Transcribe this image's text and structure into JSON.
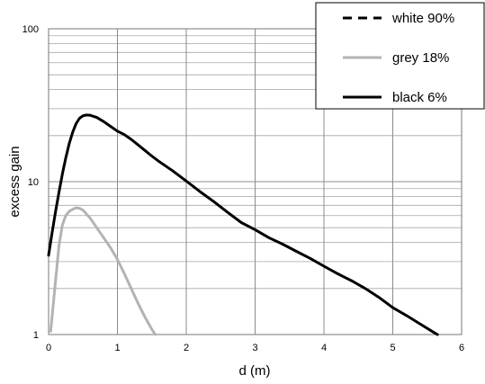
{
  "chart_data": {
    "type": "line",
    "title": "",
    "xlabel": "d (m)",
    "ylabel": "excess gain",
    "xlim": [
      0,
      6
    ],
    "ylim": [
      1,
      100
    ],
    "yscale": "log",
    "grid": true,
    "legend_position": "top-right",
    "x_ticks": [
      "0",
      "1",
      "2",
      "3",
      "4",
      "5",
      "6"
    ],
    "y_ticks": [
      "1",
      "10",
      "100"
    ],
    "series": [
      {
        "name": "white 90%",
        "style": "dashed",
        "color": "#000000",
        "points": []
      },
      {
        "name": "grey 18%",
        "style": "solid",
        "color": "#b3b3b3",
        "points": [
          [
            0.03,
            1.05
          ],
          [
            0.1,
            2.2
          ],
          [
            0.15,
            3.8
          ],
          [
            0.2,
            5.2
          ],
          [
            0.25,
            6.0
          ],
          [
            0.3,
            6.4
          ],
          [
            0.35,
            6.6
          ],
          [
            0.4,
            6.75
          ],
          [
            0.45,
            6.7
          ],
          [
            0.5,
            6.5
          ],
          [
            0.6,
            5.8
          ],
          [
            0.7,
            5.0
          ],
          [
            0.8,
            4.3
          ],
          [
            0.9,
            3.7
          ],
          [
            1.0,
            3.1
          ],
          [
            1.1,
            2.5
          ],
          [
            1.2,
            2.0
          ],
          [
            1.3,
            1.6
          ],
          [
            1.4,
            1.3
          ],
          [
            1.5,
            1.08
          ],
          [
            1.55,
            1.0
          ]
        ]
      },
      {
        "name": "black 6%",
        "style": "solid",
        "color": "#000000",
        "points": [
          [
            0.0,
            3.3
          ],
          [
            0.05,
            4.6
          ],
          [
            0.1,
            6.3
          ],
          [
            0.15,
            8.5
          ],
          [
            0.2,
            11.2
          ],
          [
            0.25,
            14.3
          ],
          [
            0.3,
            17.8
          ],
          [
            0.35,
            21.1
          ],
          [
            0.4,
            24.0
          ],
          [
            0.45,
            26.0
          ],
          [
            0.5,
            27.0
          ],
          [
            0.55,
            27.3
          ],
          [
            0.6,
            27.2
          ],
          [
            0.7,
            26.3
          ],
          [
            0.8,
            24.7
          ],
          [
            0.9,
            23.0
          ],
          [
            1.0,
            21.4
          ],
          [
            1.1,
            20.3
          ],
          [
            1.2,
            18.9
          ],
          [
            1.3,
            17.4
          ],
          [
            1.4,
            16.0
          ],
          [
            1.5,
            14.7
          ],
          [
            1.6,
            13.6
          ],
          [
            1.8,
            11.8
          ],
          [
            2.0,
            10.1
          ],
          [
            2.2,
            8.6
          ],
          [
            2.4,
            7.4
          ],
          [
            2.6,
            6.3
          ],
          [
            2.8,
            5.4
          ],
          [
            3.0,
            4.85
          ],
          [
            3.2,
            4.3
          ],
          [
            3.4,
            3.9
          ],
          [
            3.6,
            3.5
          ],
          [
            3.8,
            3.15
          ],
          [
            4.0,
            2.8
          ],
          [
            4.2,
            2.5
          ],
          [
            4.4,
            2.25
          ],
          [
            4.6,
            2.0
          ],
          [
            4.8,
            1.75
          ],
          [
            5.0,
            1.5
          ],
          [
            5.2,
            1.33
          ],
          [
            5.4,
            1.17
          ],
          [
            5.6,
            1.03
          ],
          [
            5.65,
            1.0
          ]
        ]
      }
    ]
  }
}
